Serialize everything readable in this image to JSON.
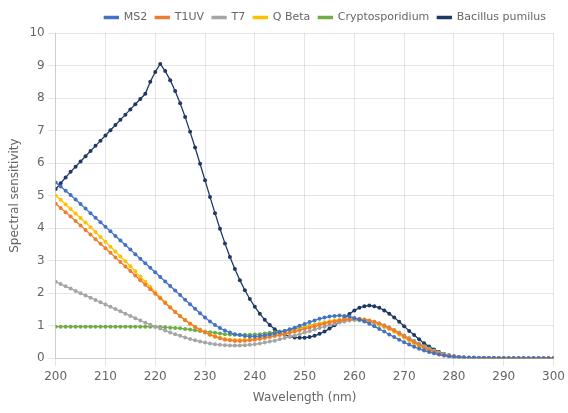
{
  "chart_data": {
    "type": "line",
    "xlabel": "Wavelength (nm)",
    "ylabel": "Spectral sensitivity",
    "xlim": [
      200,
      300
    ],
    "ylim": [
      0,
      10
    ],
    "xticks": [
      200,
      210,
      220,
      230,
      240,
      250,
      260,
      270,
      280,
      290,
      300
    ],
    "yticks": [
      0,
      1,
      2,
      3,
      4,
      5,
      6,
      7,
      8,
      9,
      10
    ],
    "grid": true,
    "legend": "upper right",
    "x": [
      200,
      201,
      202,
      203,
      204,
      205,
      206,
      207,
      208,
      209,
      210,
      211,
      212,
      213,
      214,
      215,
      216,
      217,
      218,
      219,
      220,
      221,
      222,
      223,
      224,
      225,
      226,
      227,
      228,
      229,
      230,
      231,
      232,
      233,
      234,
      235,
      236,
      237,
      238,
      239,
      240,
      241,
      242,
      243,
      244,
      245,
      246,
      247,
      248,
      249,
      250,
      251,
      252,
      253,
      254,
      255,
      256,
      257,
      258,
      259,
      260,
      261,
      262,
      263,
      264,
      265,
      266,
      267,
      268,
      269,
      270,
      271,
      272,
      273,
      274,
      275,
      276,
      277,
      278,
      279,
      280,
      281,
      282,
      283,
      284,
      285,
      286,
      287,
      288,
      289,
      290,
      291,
      292,
      293,
      294,
      295,
      296,
      297,
      298,
      299,
      300
    ],
    "series": [
      {
        "name": "MS2",
        "color": "#4472C4",
        "marker": "o",
        "values": [
          5.4,
          5.28,
          5.15,
          5.02,
          4.88,
          4.74,
          4.6,
          4.46,
          4.32,
          4.18,
          4.04,
          3.9,
          3.76,
          3.62,
          3.48,
          3.34,
          3.2,
          3.06,
          2.92,
          2.78,
          2.64,
          2.5,
          2.36,
          2.22,
          2.08,
          1.94,
          1.8,
          1.66,
          1.52,
          1.38,
          1.25,
          1.13,
          1.02,
          0.93,
          0.85,
          0.79,
          0.74,
          0.71,
          0.68,
          0.67,
          0.67,
          0.68,
          0.7,
          0.73,
          0.76,
          0.8,
          0.84,
          0.89,
          0.94,
          1.0,
          1.05,
          1.11,
          1.16,
          1.21,
          1.25,
          1.28,
          1.3,
          1.31,
          1.3,
          1.28,
          1.24,
          1.19,
          1.13,
          1.06,
          0.98,
          0.9,
          0.82,
          0.73,
          0.65,
          0.57,
          0.49,
          0.42,
          0.35,
          0.29,
          0.24,
          0.19,
          0.15,
          0.11,
          0.08,
          0.06,
          0.04,
          0.03,
          0.02,
          0.015,
          0.01,
          0.008,
          0.006,
          0.004,
          0.003,
          0.002,
          0.001,
          0.001,
          0.001,
          0.001,
          0.001,
          0.001,
          0.001,
          0.001,
          0.001,
          0.001,
          0.001
        ]
      },
      {
        "name": "T1UV",
        "color": "#ED7D31",
        "marker": "o",
        "values": [
          4.75,
          4.62,
          4.49,
          4.36,
          4.22,
          4.08,
          3.94,
          3.8,
          3.66,
          3.52,
          3.38,
          3.24,
          3.1,
          2.96,
          2.82,
          2.68,
          2.54,
          2.4,
          2.26,
          2.12,
          1.98,
          1.84,
          1.7,
          1.56,
          1.42,
          1.29,
          1.17,
          1.06,
          0.96,
          0.87,
          0.79,
          0.72,
          0.66,
          0.61,
          0.57,
          0.55,
          0.53,
          0.53,
          0.54,
          0.55,
          0.57,
          0.59,
          0.62,
          0.65,
          0.68,
          0.71,
          0.74,
          0.78,
          0.82,
          0.86,
          0.9,
          0.94,
          0.98,
          1.02,
          1.06,
          1.1,
          1.13,
          1.16,
          1.18,
          1.2,
          1.21,
          1.21,
          1.19,
          1.16,
          1.12,
          1.07,
          1.0,
          0.93,
          0.85,
          0.76,
          0.67,
          0.58,
          0.49,
          0.41,
          0.33,
          0.26,
          0.2,
          0.15,
          0.1,
          0.07,
          0.05,
          0.03,
          0.02,
          0.015,
          0.01,
          0.007,
          0.005,
          0.003,
          0.002,
          0.001,
          0.001,
          0.001,
          0.001,
          0.001,
          0.001,
          0.001,
          0.001,
          0.001,
          0.001,
          0.001,
          0.001
        ]
      },
      {
        "name": "T7",
        "color": "#A5A5A5",
        "marker": "o",
        "values": [
          2.35,
          2.28,
          2.21,
          2.14,
          2.07,
          2.0,
          1.93,
          1.86,
          1.79,
          1.72,
          1.65,
          1.58,
          1.51,
          1.44,
          1.37,
          1.3,
          1.23,
          1.16,
          1.09,
          1.03,
          0.97,
          0.91,
          0.85,
          0.79,
          0.74,
          0.69,
          0.64,
          0.59,
          0.55,
          0.51,
          0.48,
          0.45,
          0.43,
          0.41,
          0.4,
          0.39,
          0.39,
          0.39,
          0.4,
          0.41,
          0.43,
          0.45,
          0.48,
          0.51,
          0.54,
          0.58,
          0.62,
          0.66,
          0.7,
          0.74,
          0.79,
          0.83,
          0.88,
          0.93,
          0.97,
          1.02,
          1.06,
          1.1,
          1.13,
          1.16,
          1.18,
          1.18,
          1.17,
          1.15,
          1.12,
          1.07,
          1.01,
          0.95,
          0.87,
          0.79,
          0.7,
          0.61,
          0.52,
          0.44,
          0.36,
          0.29,
          0.23,
          0.17,
          0.12,
          0.08,
          0.05,
          0.04,
          0.03,
          0.02,
          0.015,
          0.01,
          0.007,
          0.005,
          0.003,
          0.002,
          0.001,
          0.001,
          0.001,
          0.001,
          0.001,
          0.001,
          0.001,
          0.001,
          0.001,
          0.001,
          0.001
        ]
      },
      {
        "name": "Q Beta",
        "color": "#FFC000",
        "marker": "o",
        "values": [
          5.0,
          4.87,
          4.73,
          4.59,
          4.45,
          4.31,
          4.17,
          4.03,
          3.88,
          3.73,
          3.58,
          3.43,
          3.28,
          3.13,
          2.98,
          2.83,
          2.67,
          2.51,
          2.35,
          2.19,
          2.03,
          1.87,
          1.72,
          1.57,
          1.43,
          1.3,
          1.18,
          1.07,
          0.97,
          0.88,
          0.8,
          0.73,
          0.68,
          0.63,
          0.59,
          0.57,
          0.56,
          0.56,
          0.57,
          0.58,
          0.6,
          0.63,
          0.66,
          0.69,
          0.72,
          0.75,
          0.78,
          0.82,
          0.86,
          0.9,
          0.94,
          0.98,
          1.02,
          1.06,
          1.1,
          1.13,
          1.16,
          1.18,
          1.2,
          1.21,
          1.21,
          1.2,
          1.18,
          1.14,
          1.09,
          1.04,
          0.97,
          0.89,
          0.81,
          0.72,
          0.63,
          0.54,
          0.45,
          0.37,
          0.29,
          0.23,
          0.17,
          0.12,
          0.08,
          0.05,
          0.03,
          0.02,
          0.015,
          0.01,
          0.008,
          0.006,
          0.005,
          0.004,
          0.003,
          0.002,
          0.001,
          0.001,
          0.001,
          0.001,
          0.001,
          0.001,
          0.001,
          0.001,
          0.001,
          0.001,
          0.001
        ]
      },
      {
        "name": "Cryptosporidium",
        "color": "#70AD47",
        "marker": "o",
        "values": [
          0.97,
          0.97,
          0.97,
          0.97,
          0.97,
          0.97,
          0.97,
          0.97,
          0.97,
          0.97,
          0.97,
          0.97,
          0.97,
          0.97,
          0.97,
          0.97,
          0.97,
          0.97,
          0.97,
          0.97,
          0.97,
          0.96,
          0.95,
          0.94,
          0.93,
          0.92,
          0.9,
          0.88,
          0.86,
          0.84,
          0.82,
          0.8,
          0.78,
          0.76,
          0.74,
          0.73,
          0.72,
          0.72,
          0.72,
          0.72,
          0.73,
          0.74,
          0.76,
          0.78,
          0.8,
          0.82,
          0.84,
          0.87,
          0.9,
          0.93,
          0.96,
          1.0,
          1.03,
          1.07,
          1.1,
          1.13,
          1.15,
          1.17,
          1.18,
          1.18,
          1.18,
          1.17,
          1.15,
          1.12,
          1.08,
          1.03,
          0.97,
          0.91,
          0.84,
          0.77,
          0.69,
          0.61,
          0.53,
          0.45,
          0.37,
          0.3,
          0.23,
          0.17,
          0.12,
          0.08,
          0.05,
          0.03,
          0.02,
          0.015,
          0.01,
          0.008,
          0.006,
          0.005,
          0.003,
          0.002,
          0.002,
          0.001,
          0.001,
          0.001,
          0.001,
          0.001,
          0.001,
          0.001,
          0.001,
          0.001,
          0.001
        ]
      },
      {
        "name": "Bacillus pumilus",
        "color": "#203864",
        "marker": "o",
        "values": [
          5.2,
          5.38,
          5.56,
          5.73,
          5.89,
          6.05,
          6.21,
          6.37,
          6.53,
          6.69,
          6.85,
          7.01,
          7.17,
          7.33,
          7.49,
          7.65,
          7.81,
          7.97,
          8.13,
          8.5,
          8.8,
          9.05,
          8.83,
          8.55,
          8.22,
          7.84,
          7.42,
          6.96,
          6.48,
          5.98,
          5.47,
          4.96,
          4.46,
          3.98,
          3.53,
          3.11,
          2.74,
          2.4,
          2.09,
          1.82,
          1.58,
          1.37,
          1.18,
          1.02,
          0.89,
          0.79,
          0.72,
          0.67,
          0.64,
          0.63,
          0.63,
          0.65,
          0.69,
          0.75,
          0.82,
          0.91,
          1.01,
          1.12,
          1.24,
          1.36,
          1.47,
          1.55,
          1.6,
          1.62,
          1.6,
          1.55,
          1.47,
          1.37,
          1.25,
          1.12,
          0.98,
          0.84,
          0.71,
          0.58,
          0.46,
          0.36,
          0.27,
          0.19,
          0.13,
          0.09,
          0.06,
          0.04,
          0.025,
          0.016,
          0.01,
          0.007,
          0.004,
          0.003,
          0.002,
          0.001,
          0.001,
          0.001,
          0.001,
          0.001,
          0.001,
          0.001,
          0.001,
          0.001,
          0.001,
          0.001,
          0.001
        ]
      }
    ]
  }
}
